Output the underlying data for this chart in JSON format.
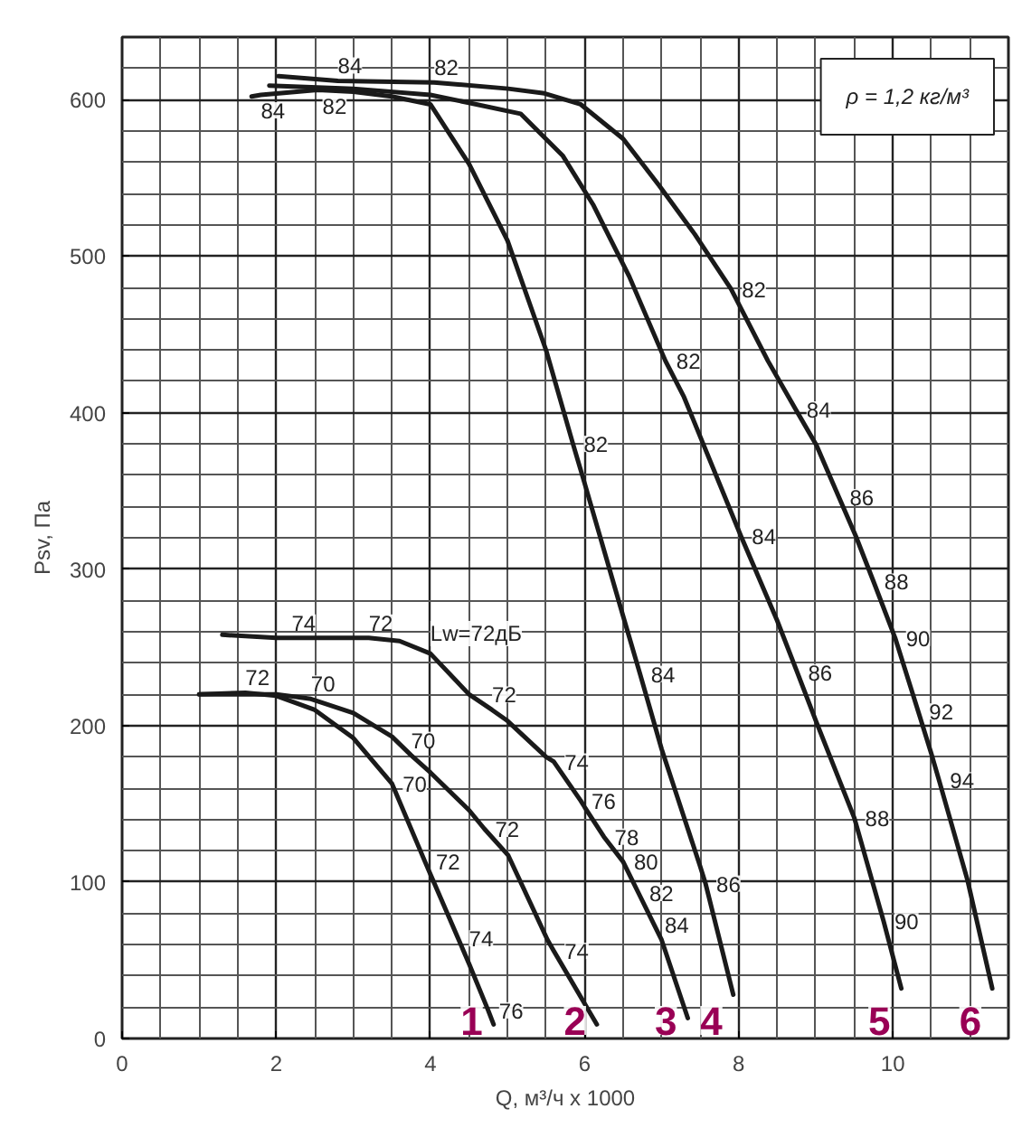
{
  "chart_data": {
    "type": "line",
    "xlabel": "Q, м³/ч x 1000",
    "ylabel": "Psv, Па",
    "xlim": [
      0,
      11.5
    ],
    "ylim": [
      0,
      640
    ],
    "xticks": [
      0,
      2,
      4,
      6,
      8,
      10
    ],
    "yticks": [
      0,
      100,
      200,
      300,
      400,
      500,
      600
    ],
    "grid": true,
    "marker": "none",
    "line_style": "solid",
    "series": [
      {
        "name": "1",
        "color": "#1a1a1a",
        "x": [
          1.0,
          1.6,
          2.0,
          2.5,
          3.0,
          3.5,
          3.93,
          4.0,
          4.36,
          4.5,
          4.75,
          4.82
        ],
        "values": [
          220,
          221,
          219,
          210,
          192,
          163,
          113,
          105,
          64,
          48,
          18,
          9
        ]
      },
      {
        "name": "2",
        "color": "#1a1a1a",
        "x": [
          1.0,
          2.0,
          2.45,
          3.0,
          3.5,
          3.75,
          4.0,
          4.5,
          4.7,
          5.01,
          5.52,
          5.6,
          6.16
        ],
        "values": [
          220,
          220,
          217,
          208,
          193,
          181,
          170,
          146,
          134,
          117,
          63,
          56,
          9
        ]
      },
      {
        "name": "3",
        "color": "#1a1a1a",
        "x": [
          1.3,
          2.0,
          2.2,
          3.0,
          3.2,
          3.6,
          4.0,
          4.5,
          4.8,
          5.0,
          5.5,
          5.6,
          5.95,
          6.0,
          6.25,
          6.5,
          6.7,
          6.9,
          7.0,
          7.34
        ],
        "values": [
          258,
          256,
          256,
          256,
          256,
          254,
          246,
          220,
          210,
          203,
          180,
          177,
          152,
          148,
          129,
          113,
          93,
          73,
          63,
          13
        ]
      },
      {
        "name": "4",
        "color": "#1a1a1a",
        "x": [
          1.68,
          1.8,
          2.5,
          2.6,
          3.0,
          3.5,
          4.0,
          4.5,
          5.0,
          5.5,
          5.85,
          6.0,
          6.5,
          6.72,
          7.0,
          7.5,
          7.57,
          7.93
        ],
        "values": [
          602,
          603,
          606,
          606,
          605,
          602,
          597,
          559,
          510,
          440,
          380,
          355,
          270,
          233,
          185,
          110,
          99,
          28
        ]
      },
      {
        "name": "5",
        "color": "#1a1a1a",
        "x": [
          1.91,
          3.0,
          4.0,
          4.5,
          5.17,
          5.72,
          6.11,
          6.58,
          7.05,
          7.29,
          8.03,
          8.5,
          8.76,
          9.01,
          9.5,
          9.88,
          10.11
        ],
        "values": [
          609,
          607,
          603,
          598,
          591,
          564,
          533,
          487,
          433,
          410,
          321,
          267,
          234,
          202,
          141,
          75,
          32
        ]
      },
      {
        "name": "6",
        "color": "#1a1a1a",
        "x": [
          2.03,
          2.8,
          4.05,
          5.01,
          5.48,
          5.95,
          6.5,
          6.97,
          7.43,
          7.9,
          8.38,
          8.74,
          9.01,
          9.3,
          9.52,
          9.75,
          10.03,
          10.33,
          10.5,
          10.6,
          10.97,
          11.29
        ],
        "values": [
          615,
          612,
          611,
          607,
          604,
          597,
          575,
          545,
          514,
          479,
          433,
          402,
          379,
          346,
          321,
          292,
          256,
          209,
          182,
          165,
          101,
          32
        ]
      }
    ],
    "annotations": [
      "ρ = 1,2 кг/м³",
      {
        "text": "72",
        "x": 1.6,
        "y": 221
      },
      {
        "text": "70",
        "x": 3.5,
        "y": 163
      },
      {
        "text": "72",
        "x": 3.93,
        "y": 113
      },
      {
        "text": "74",
        "x": 4.36,
        "y": 64
      },
      {
        "text": "76",
        "x": 4.75,
        "y": 18
      },
      {
        "text": "70",
        "x": 2.45,
        "y": 217
      },
      {
        "text": "70",
        "x": 3.75,
        "y": 181
      },
      {
        "text": "72",
        "x": 4.7,
        "y": 134
      },
      {
        "text": "74",
        "x": 5.6,
        "y": 56
      },
      {
        "text": "74",
        "x": 2.2,
        "y": 256
      },
      {
        "text": "72",
        "x": 3.2,
        "y": 256
      },
      {
        "text": "Lw=72дБ",
        "x": 4.0,
        "y": 246
      },
      {
        "text": "72",
        "x": 4.8,
        "y": 210
      },
      {
        "text": "74",
        "x": 5.6,
        "y": 177
      },
      {
        "text": "76",
        "x": 5.95,
        "y": 152
      },
      {
        "text": "78",
        "x": 6.25,
        "y": 129
      },
      {
        "text": "80",
        "x": 6.5,
        "y": 113
      },
      {
        "text": "82",
        "x": 6.7,
        "y": 93
      },
      {
        "text": "84",
        "x": 6.9,
        "y": 73
      },
      {
        "text": "84",
        "x": 1.8,
        "y": 603
      },
      {
        "text": "82",
        "x": 2.6,
        "y": 606
      },
      {
        "text": "82",
        "x": 5.85,
        "y": 380
      },
      {
        "text": "84",
        "x": 6.72,
        "y": 233
      },
      {
        "text": "86",
        "x": 7.57,
        "y": 99
      },
      {
        "text": "82",
        "x": 7.05,
        "y": 433
      },
      {
        "text": "84",
        "x": 8.03,
        "y": 321
      },
      {
        "text": "86",
        "x": 8.76,
        "y": 234
      },
      {
        "text": "88",
        "x": 9.5,
        "y": 141
      },
      {
        "text": "90",
        "x": 9.88,
        "y": 75
      },
      {
        "text": "84",
        "x": 2.8,
        "y": 612
      },
      {
        "text": "82",
        "x": 4.05,
        "y": 611
      },
      {
        "text": "82",
        "x": 7.9,
        "y": 479
      },
      {
        "text": "84",
        "x": 8.74,
        "y": 402
      },
      {
        "text": "86",
        "x": 9.3,
        "y": 346
      },
      {
        "text": "88",
        "x": 9.75,
        "y": 292
      },
      {
        "text": "90",
        "x": 10.03,
        "y": 256
      },
      {
        "text": "92",
        "x": 10.33,
        "y": 209
      },
      {
        "text": "94",
        "x": 10.6,
        "y": 165
      }
    ]
  }
}
